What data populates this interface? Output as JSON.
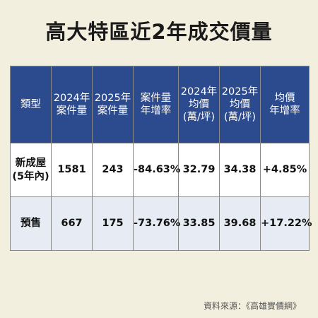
{
  "title": "高大特區近2年成交價量",
  "table": {
    "headers": [
      [
        "類型"
      ],
      [
        "2024年",
        "案件量"
      ],
      [
        "2025年",
        "案件量"
      ],
      [
        "案件量",
        "年增率"
      ],
      [
        "2024年",
        "均價",
        "(萬/坪)"
      ],
      [
        "2025年",
        "均價",
        "(萬/坪)"
      ],
      [
        "均價",
        "年增率"
      ]
    ],
    "rows": [
      {
        "label": [
          "新成屋",
          "(5年內)"
        ],
        "cells": [
          "1581",
          "243",
          "-84.63%",
          "32.79",
          "34.38",
          "+4.85%"
        ]
      },
      {
        "label": [
          "預售"
        ],
        "cells": [
          "667",
          "175",
          "-73.76%",
          "33.85",
          "39.68",
          "+17.22%"
        ]
      }
    ]
  },
  "source": "資料來源：《高雄實價網》"
}
